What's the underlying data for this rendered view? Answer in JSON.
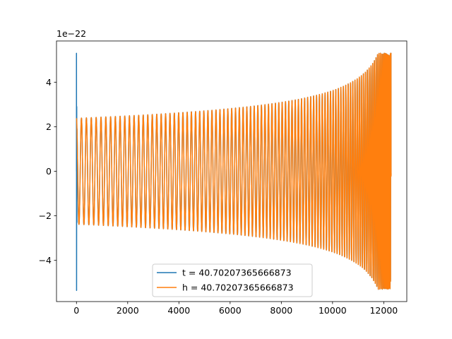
{
  "chart_data": {
    "type": "line",
    "title": "",
    "xlabel": "",
    "ylabel": "",
    "offset_text": "1e−22",
    "xlim": [
      -780,
      12900
    ],
    "ylim": [
      -5.85,
      5.85
    ],
    "y_scale": "1e-22",
    "xticks": [
      0,
      2000,
      4000,
      6000,
      8000,
      10000,
      12000
    ],
    "xtick_labels": [
      "0",
      "2000",
      "4000",
      "6000",
      "8000",
      "10000",
      "12000"
    ],
    "yticks": [
      -4,
      -2,
      0,
      2,
      4
    ],
    "ytick_labels": [
      "−4",
      "−2",
      "0",
      "2",
      "4"
    ],
    "grid": false,
    "legend_placement": "lower center",
    "waveform": {
      "n_samples": 12288,
      "merger_index": 12280,
      "initial_amplitude": 2.38,
      "peak_amplitude": 5.3,
      "initial_cycles_visible": "about 100 chirp cycles"
    },
    "series": [
      {
        "name": "t = 40.70207365666873",
        "color": "#1f77b4",
        "initial_spike": 5.3,
        "initial_spike_min": -5.35
      },
      {
        "name": "h = 40.70207365666873",
        "color": "#ff7f0e"
      }
    ]
  }
}
